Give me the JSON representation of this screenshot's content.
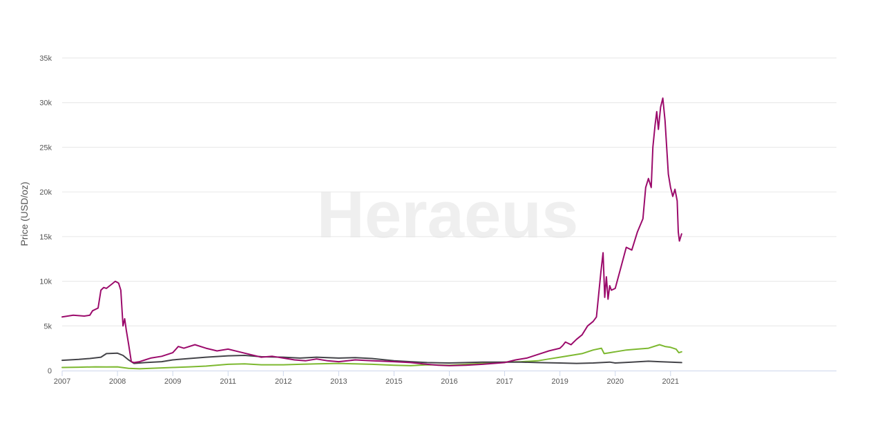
{
  "chart_data": {
    "type": "line",
    "title": "",
    "xlabel": "",
    "ylabel": "Price (USD/oz)",
    "watermark": "Heraeus",
    "ylim": [
      0,
      35000
    ],
    "yticks": [
      0,
      5000,
      10000,
      15000,
      20000,
      25000,
      30000,
      35000
    ],
    "ytick_labels": [
      "0",
      "5k",
      "10k",
      "15k",
      "20k",
      "25k",
      "30k",
      "35k"
    ],
    "xlim": [
      2007.0,
      2021.0
    ],
    "xticks": [
      {
        "label": "2007",
        "position": 2007.0
      },
      {
        "label": "2008",
        "position": 2008.0
      },
      {
        "label": "2009",
        "position": 2009.0
      },
      {
        "label": "2011",
        "position": 2010.0
      },
      {
        "label": "2012",
        "position": 2011.0
      },
      {
        "label": "2013",
        "position": 2012.0
      },
      {
        "label": "2015",
        "position": 2013.0
      },
      {
        "label": "2016",
        "position": 2014.0
      },
      {
        "label": "2017",
        "position": 2015.0
      },
      {
        "label": "2019",
        "position": 2016.0
      },
      {
        "label": "2020",
        "position": 2017.0
      },
      {
        "label": "2021",
        "position": 2018.0
      }
    ],
    "grid": true,
    "series": [
      {
        "color": "#9b0a6b",
        "points": [
          [
            2007.0,
            6000
          ],
          [
            2007.2,
            6200
          ],
          [
            2007.4,
            6100
          ],
          [
            2007.5,
            6200
          ],
          [
            2007.55,
            6700
          ],
          [
            2007.65,
            7000
          ],
          [
            2007.7,
            9000
          ],
          [
            2007.75,
            9300
          ],
          [
            2007.8,
            9200
          ],
          [
            2007.9,
            9700
          ],
          [
            2007.96,
            10000
          ],
          [
            2008.02,
            9800
          ],
          [
            2008.06,
            9000
          ],
          [
            2008.1,
            5000
          ],
          [
            2008.13,
            5800
          ],
          [
            2008.16,
            4500
          ],
          [
            2008.2,
            3000
          ],
          [
            2008.25,
            1000
          ],
          [
            2008.3,
            900
          ],
          [
            2008.4,
            1000
          ],
          [
            2008.5,
            1200
          ],
          [
            2008.6,
            1400
          ],
          [
            2008.8,
            1600
          ],
          [
            2009.0,
            2000
          ],
          [
            2009.1,
            2700
          ],
          [
            2009.2,
            2500
          ],
          [
            2009.4,
            2900
          ],
          [
            2009.6,
            2500
          ],
          [
            2009.8,
            2200
          ],
          [
            2010.0,
            2400
          ],
          [
            2010.2,
            2100
          ],
          [
            2010.4,
            1800
          ],
          [
            2010.6,
            1500
          ],
          [
            2010.8,
            1600
          ],
          [
            2011.0,
            1400
          ],
          [
            2011.2,
            1200
          ],
          [
            2011.4,
            1100
          ],
          [
            2011.6,
            1300
          ],
          [
            2011.8,
            1100
          ],
          [
            2012.0,
            1000
          ],
          [
            2012.3,
            1200
          ],
          [
            2012.6,
            1100
          ],
          [
            2013.0,
            1000
          ],
          [
            2013.3,
            900
          ],
          [
            2013.6,
            700
          ],
          [
            2013.8,
            600
          ],
          [
            2014.0,
            550
          ],
          [
            2014.3,
            600
          ],
          [
            2014.6,
            700
          ],
          [
            2015.0,
            900
          ],
          [
            2015.2,
            1200
          ],
          [
            2015.4,
            1400
          ],
          [
            2015.6,
            1800
          ],
          [
            2015.8,
            2200
          ],
          [
            2016.0,
            2500
          ],
          [
            2016.05,
            2800
          ],
          [
            2016.1,
            3200
          ],
          [
            2016.2,
            2900
          ],
          [
            2016.3,
            3500
          ],
          [
            2016.4,
            4000
          ],
          [
            2016.5,
            5000
          ],
          [
            2016.6,
            5500
          ],
          [
            2016.66,
            6000
          ],
          [
            2016.7,
            8500
          ],
          [
            2016.74,
            11000
          ],
          [
            2016.78,
            13200
          ],
          [
            2016.81,
            8200
          ],
          [
            2016.84,
            10500
          ],
          [
            2016.87,
            8000
          ],
          [
            2016.9,
            9500
          ],
          [
            2016.93,
            9000
          ],
          [
            2017.0,
            9200
          ],
          [
            2017.1,
            11500
          ],
          [
            2017.2,
            13800
          ],
          [
            2017.3,
            13500
          ],
          [
            2017.4,
            15500
          ],
          [
            2017.5,
            17000
          ],
          [
            2017.55,
            20500
          ],
          [
            2017.6,
            21500
          ],
          [
            2017.65,
            20500
          ],
          [
            2017.68,
            25000
          ],
          [
            2017.72,
            27500
          ],
          [
            2017.75,
            29000
          ],
          [
            2017.78,
            27000
          ],
          [
            2017.82,
            29500
          ],
          [
            2017.86,
            30500
          ],
          [
            2017.9,
            28000
          ],
          [
            2017.93,
            25000
          ],
          [
            2017.96,
            22000
          ],
          [
            2018.0,
            20500
          ],
          [
            2018.04,
            19500
          ],
          [
            2018.08,
            20300
          ],
          [
            2018.12,
            19000
          ],
          [
            2018.14,
            15500
          ],
          [
            2018.16,
            14500
          ],
          [
            2018.2,
            15300
          ]
        ]
      },
      {
        "color": "#434348",
        "points": [
          [
            2007.0,
            1150
          ],
          [
            2007.3,
            1250
          ],
          [
            2007.5,
            1350
          ],
          [
            2007.7,
            1500
          ],
          [
            2007.8,
            1900
          ],
          [
            2008.0,
            1950
          ],
          [
            2008.1,
            1700
          ],
          [
            2008.2,
            1200
          ],
          [
            2008.3,
            800
          ],
          [
            2008.5,
            900
          ],
          [
            2008.8,
            1000
          ],
          [
            2009.0,
            1200
          ],
          [
            2009.3,
            1350
          ],
          [
            2009.6,
            1500
          ],
          [
            2010.0,
            1650
          ],
          [
            2010.3,
            1700
          ],
          [
            2010.6,
            1550
          ],
          [
            2011.0,
            1500
          ],
          [
            2011.3,
            1400
          ],
          [
            2011.6,
            1500
          ],
          [
            2012.0,
            1400
          ],
          [
            2012.3,
            1450
          ],
          [
            2012.6,
            1350
          ],
          [
            2013.0,
            1100
          ],
          [
            2013.3,
            1000
          ],
          [
            2013.6,
            900
          ],
          [
            2014.0,
            850
          ],
          [
            2014.3,
            900
          ],
          [
            2014.6,
            950
          ],
          [
            2015.0,
            950
          ],
          [
            2015.3,
            950
          ],
          [
            2015.6,
            900
          ],
          [
            2016.0,
            850
          ],
          [
            2016.3,
            800
          ],
          [
            2016.6,
            850
          ],
          [
            2016.9,
            950
          ],
          [
            2017.0,
            850
          ],
          [
            2017.3,
            950
          ],
          [
            2017.6,
            1050
          ],
          [
            2017.8,
            1000
          ],
          [
            2018.0,
            950
          ],
          [
            2018.2,
            900
          ]
        ]
      },
      {
        "color": "#7cb82f",
        "points": [
          [
            2007.0,
            350
          ],
          [
            2007.3,
            380
          ],
          [
            2007.6,
            420
          ],
          [
            2007.8,
            400
          ],
          [
            2008.0,
            420
          ],
          [
            2008.2,
            250
          ],
          [
            2008.4,
            200
          ],
          [
            2008.6,
            250
          ],
          [
            2008.8,
            300
          ],
          [
            2009.0,
            350
          ],
          [
            2009.3,
            420
          ],
          [
            2009.6,
            500
          ],
          [
            2010.0,
            700
          ],
          [
            2010.3,
            750
          ],
          [
            2010.6,
            650
          ],
          [
            2011.0,
            650
          ],
          [
            2011.3,
            700
          ],
          [
            2011.6,
            750
          ],
          [
            2012.0,
            800
          ],
          [
            2012.3,
            750
          ],
          [
            2012.6,
            700
          ],
          [
            2013.0,
            600
          ],
          [
            2013.3,
            550
          ],
          [
            2013.6,
            650
          ],
          [
            2014.0,
            600
          ],
          [
            2014.3,
            700
          ],
          [
            2014.6,
            800
          ],
          [
            2015.0,
            950
          ],
          [
            2015.3,
            1000
          ],
          [
            2015.6,
            1100
          ],
          [
            2015.8,
            1300
          ],
          [
            2016.0,
            1500
          ],
          [
            2016.2,
            1700
          ],
          [
            2016.4,
            1900
          ],
          [
            2016.6,
            2300
          ],
          [
            2016.75,
            2500
          ],
          [
            2016.8,
            1900
          ],
          [
            2016.9,
            2000
          ],
          [
            2017.0,
            2100
          ],
          [
            2017.2,
            2300
          ],
          [
            2017.4,
            2400
          ],
          [
            2017.6,
            2500
          ],
          [
            2017.8,
            2900
          ],
          [
            2017.9,
            2700
          ],
          [
            2018.0,
            2600
          ],
          [
            2018.1,
            2400
          ],
          [
            2018.15,
            2000
          ],
          [
            2018.2,
            2100
          ]
        ]
      }
    ]
  }
}
